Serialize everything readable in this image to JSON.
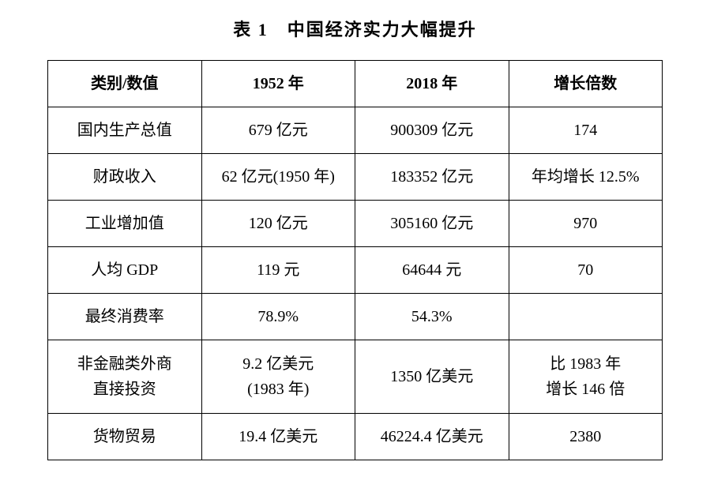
{
  "title": "表 1　中国经济实力大幅提升",
  "table": {
    "columns": [
      "类别/数值",
      "1952 年",
      "2018 年",
      "增长倍数"
    ],
    "rows": [
      [
        "国内生产总值",
        "679 亿元",
        "900309 亿元",
        "174"
      ],
      [
        "财政收入",
        "62 亿元(1950 年)",
        "183352 亿元",
        "年均增长 12.5%"
      ],
      [
        "工业增加值",
        "120 亿元",
        "305160 亿元",
        "970"
      ],
      [
        "人均 GDP",
        "119 元",
        "64644 元",
        "70"
      ],
      [
        "最终消费率",
        "78.9%",
        "54.3%",
        ""
      ],
      [
        "非金融类外商\n直接投资",
        "9.2 亿美元\n(1983 年)",
        "1350 亿美元",
        "比 1983 年\n增长 146 倍"
      ],
      [
        "货物贸易",
        "19.4 亿美元",
        "46224.4 亿美元",
        "2380"
      ]
    ],
    "border_color": "#000000",
    "background_color": "#ffffff",
    "text_color": "#000000",
    "title_fontsize": 22,
    "cell_fontsize": 20
  }
}
